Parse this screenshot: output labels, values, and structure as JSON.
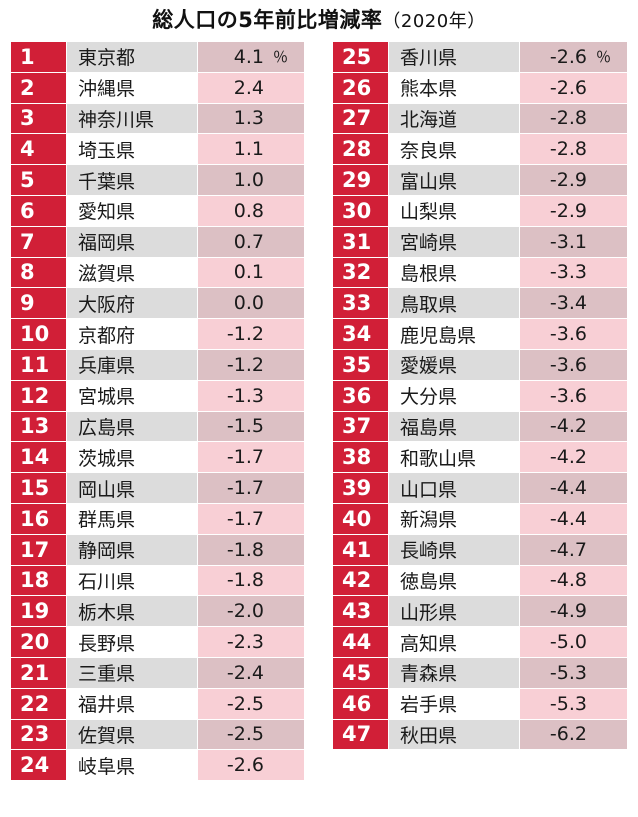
{
  "chart_data": {
    "type": "table",
    "title": "総人口の5年前比増減率",
    "year_label": "（2020年）",
    "unit": "％",
    "rows": [
      {
        "rank": "1",
        "prefecture": "東京都",
        "value": "4.1"
      },
      {
        "rank": "2",
        "prefecture": "沖縄県",
        "value": "2.4"
      },
      {
        "rank": "3",
        "prefecture": "神奈川県",
        "value": "1.3"
      },
      {
        "rank": "4",
        "prefecture": "埼玉県",
        "value": "1.1"
      },
      {
        "rank": "5",
        "prefecture": "千葉県",
        "value": "1.0"
      },
      {
        "rank": "6",
        "prefecture": "愛知県",
        "value": "0.8"
      },
      {
        "rank": "7",
        "prefecture": "福岡県",
        "value": "0.7"
      },
      {
        "rank": "8",
        "prefecture": "滋賀県",
        "value": "0.1"
      },
      {
        "rank": "9",
        "prefecture": "大阪府",
        "value": "0.0"
      },
      {
        "rank": "10",
        "prefecture": "京都府",
        "value": "-1.2"
      },
      {
        "rank": "11",
        "prefecture": "兵庫県",
        "value": "-1.2"
      },
      {
        "rank": "12",
        "prefecture": "宮城県",
        "value": "-1.3"
      },
      {
        "rank": "13",
        "prefecture": "広島県",
        "value": "-1.5"
      },
      {
        "rank": "14",
        "prefecture": "茨城県",
        "value": "-1.7"
      },
      {
        "rank": "15",
        "prefecture": "岡山県",
        "value": "-1.7"
      },
      {
        "rank": "16",
        "prefecture": "群馬県",
        "value": "-1.7"
      },
      {
        "rank": "17",
        "prefecture": "静岡県",
        "value": "-1.8"
      },
      {
        "rank": "18",
        "prefecture": "石川県",
        "value": "-1.8"
      },
      {
        "rank": "19",
        "prefecture": "栃木県",
        "value": "-2.0"
      },
      {
        "rank": "20",
        "prefecture": "長野県",
        "value": "-2.3"
      },
      {
        "rank": "21",
        "prefecture": "三重県",
        "value": "-2.4"
      },
      {
        "rank": "22",
        "prefecture": "福井県",
        "value": "-2.5"
      },
      {
        "rank": "23",
        "prefecture": "佐賀県",
        "value": "-2.5"
      },
      {
        "rank": "24",
        "prefecture": "岐阜県",
        "value": "-2.6"
      },
      {
        "rank": "25",
        "prefecture": "香川県",
        "value": "-2.6"
      },
      {
        "rank": "26",
        "prefecture": "熊本県",
        "value": "-2.6"
      },
      {
        "rank": "27",
        "prefecture": "北海道",
        "value": "-2.8"
      },
      {
        "rank": "28",
        "prefecture": "奈良県",
        "value": "-2.8"
      },
      {
        "rank": "29",
        "prefecture": "富山県",
        "value": "-2.9"
      },
      {
        "rank": "30",
        "prefecture": "山梨県",
        "value": "-2.9"
      },
      {
        "rank": "31",
        "prefecture": "宮崎県",
        "value": "-3.1"
      },
      {
        "rank": "32",
        "prefecture": "島根県",
        "value": "-3.3"
      },
      {
        "rank": "33",
        "prefecture": "鳥取県",
        "value": "-3.4"
      },
      {
        "rank": "34",
        "prefecture": "鹿児島県",
        "value": "-3.6"
      },
      {
        "rank": "35",
        "prefecture": "愛媛県",
        "value": "-3.6"
      },
      {
        "rank": "36",
        "prefecture": "大分県",
        "value": "-3.6"
      },
      {
        "rank": "37",
        "prefecture": "福島県",
        "value": "-4.2"
      },
      {
        "rank": "38",
        "prefecture": "和歌山県",
        "value": "-4.2"
      },
      {
        "rank": "39",
        "prefecture": "山口県",
        "value": "-4.4"
      },
      {
        "rank": "40",
        "prefecture": "新潟県",
        "value": "-4.4"
      },
      {
        "rank": "41",
        "prefecture": "長崎県",
        "value": "-4.7"
      },
      {
        "rank": "42",
        "prefecture": "徳島県",
        "value": "-4.8"
      },
      {
        "rank": "43",
        "prefecture": "山形県",
        "value": "-4.9"
      },
      {
        "rank": "44",
        "prefecture": "高知県",
        "value": "-5.0"
      },
      {
        "rank": "45",
        "prefecture": "青森県",
        "value": "-5.3"
      },
      {
        "rank": "46",
        "prefecture": "岩手県",
        "value": "-5.3"
      },
      {
        "rank": "47",
        "prefecture": "秋田県",
        "value": "-6.2"
      }
    ]
  },
  "colors": {
    "rank_bg": "#d11f37",
    "name_bg_shaded": "#dcdcdc",
    "value_bg_shaded": "#dcc0c4",
    "value_bg_light": "#f8cfd5"
  }
}
